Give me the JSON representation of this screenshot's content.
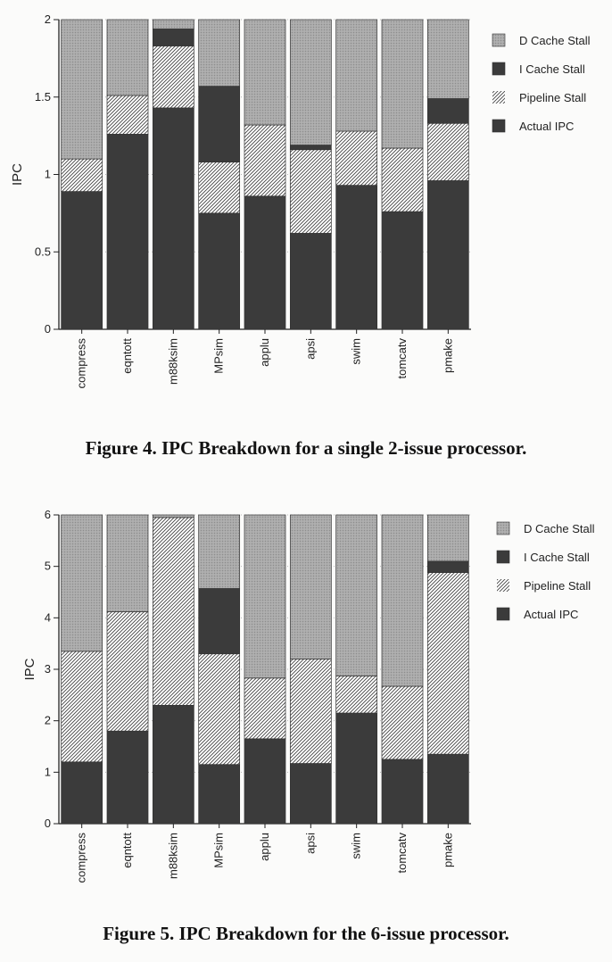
{
  "chart_data": [
    {
      "type": "bar",
      "stacked": true,
      "categories": [
        "compress",
        "eqntott",
        "m88ksim",
        "MPsim",
        "applu",
        "apsi",
        "swim",
        "tomcatv",
        "pmake"
      ],
      "ylabel": "IPC",
      "ylim": [
        0,
        2
      ],
      "yticks": [
        "0",
        "0.5",
        "1",
        "1.5",
        "2"
      ],
      "grid": true,
      "legend_position": "right",
      "series": [
        {
          "name": "Actual IPC",
          "values": [
            0.89,
            1.26,
            1.43,
            0.75,
            0.86,
            0.62,
            0.93,
            0.76,
            0.96
          ]
        },
        {
          "name": "Pipeline Stall",
          "values": [
            0.21,
            0.25,
            0.4,
            0.33,
            0.46,
            0.54,
            0.35,
            0.41,
            0.37
          ]
        },
        {
          "name": "I Cache Stall",
          "values": [
            0,
            0,
            0.11,
            0.49,
            0,
            0.03,
            0,
            0,
            0.16
          ]
        },
        {
          "name": "D Cache Stall",
          "values": [
            0.9,
            0.49,
            0.06,
            0.43,
            0.68,
            0.81,
            0.72,
            0.83,
            0.51
          ]
        }
      ],
      "legend_order": [
        "D Cache Stall",
        "I Cache Stall",
        "Pipeline Stall",
        "Actual IPC"
      ],
      "caption": "Figure 4.   IPC Breakdown for a single 2-issue processor."
    },
    {
      "type": "bar",
      "stacked": true,
      "categories": [
        "compress",
        "eqntott",
        "m88ksim",
        "MPsim",
        "applu",
        "apsi",
        "swim",
        "tomcatv",
        "pmake"
      ],
      "ylabel": "IPC",
      "ylim": [
        0,
        6
      ],
      "yticks": [
        "0",
        "1",
        "2",
        "3",
        "4",
        "5",
        "6"
      ],
      "grid": true,
      "legend_position": "right",
      "series": [
        {
          "name": "Actual IPC",
          "values": [
            1.2,
            1.8,
            2.3,
            1.15,
            1.65,
            1.17,
            2.15,
            1.25,
            1.35
          ]
        },
        {
          "name": "Pipeline Stall",
          "values": [
            2.15,
            2.32,
            3.65,
            2.15,
            1.18,
            2.03,
            0.72,
            1.42,
            3.53
          ]
        },
        {
          "name": "I Cache Stall",
          "values": [
            0,
            0,
            0,
            1.27,
            0,
            0,
            0,
            0,
            0.22
          ]
        },
        {
          "name": "D Cache Stall",
          "values": [
            2.65,
            1.88,
            0.05,
            1.43,
            3.17,
            2.8,
            3.13,
            3.33,
            0.9
          ]
        }
      ],
      "legend_order": [
        "D Cache Stall",
        "I Cache Stall",
        "Pipeline Stall",
        "Actual IPC"
      ],
      "caption": "Figure 5.   IPC Breakdown for the 6-issue processor."
    }
  ],
  "colors": {
    "actual_ipc": "#3b3b3b",
    "i_cache_stall": "#3b3b3b",
    "d_cache_stall": "#a8a8a8",
    "pipeline_stall_hatch": "#444444",
    "background": "#fbfbfa"
  }
}
